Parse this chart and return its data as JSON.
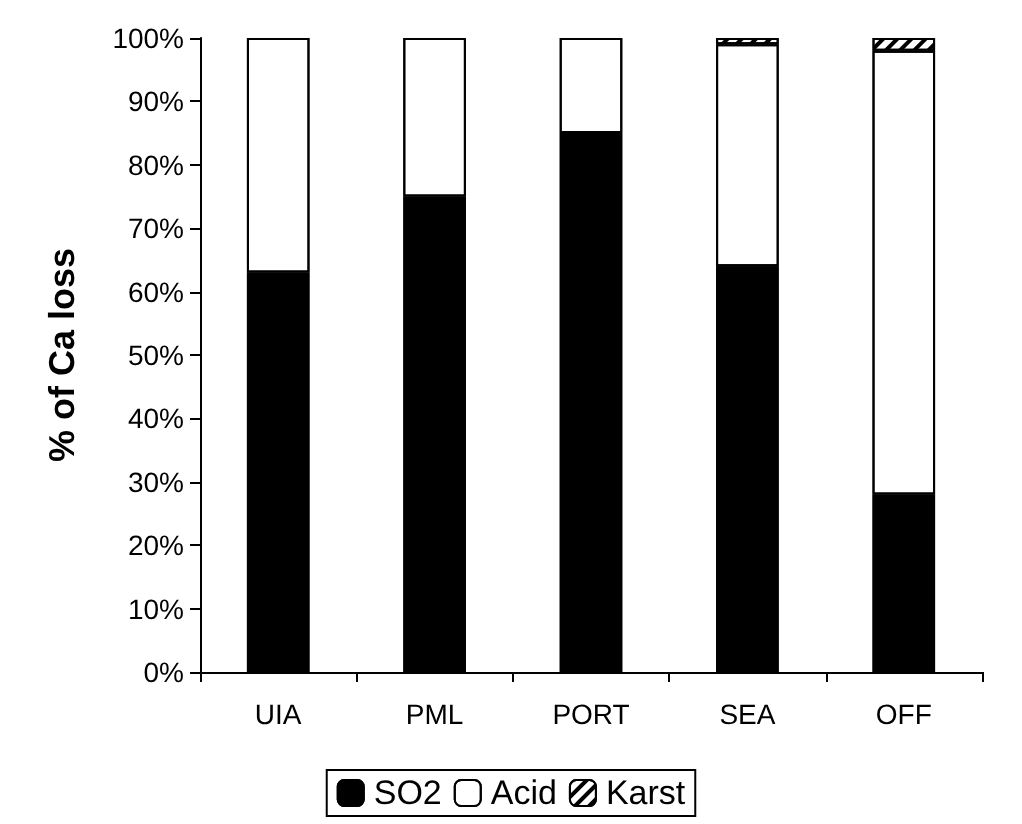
{
  "chart_data": {
    "type": "bar",
    "stacked": true,
    "ylabel": "% of Ca loss",
    "categories": [
      "UIA",
      "PML",
      "PORT",
      "SEA",
      "OFF"
    ],
    "series": [
      {
        "name": "SO2",
        "color": "#000000",
        "values": [
          63,
          75,
          85,
          64,
          28
        ]
      },
      {
        "name": "Acid",
        "color": "#ffffff",
        "values": [
          37,
          25,
          15,
          35,
          70
        ]
      },
      {
        "name": "Karst",
        "color": "#ffffff",
        "values": [
          null,
          null,
          null,
          1,
          2
        ]
      }
    ],
    "ylim": [
      0,
      100
    ],
    "yticks": [
      {
        "value": 0,
        "label": "0%"
      },
      {
        "value": 10,
        "label": "10%"
      },
      {
        "value": 20,
        "label": "20%"
      },
      {
        "value": 30,
        "label": "30%"
      },
      {
        "value": 40,
        "label": "40%"
      },
      {
        "value": 50,
        "label": "50%"
      },
      {
        "value": 60,
        "label": "60%"
      },
      {
        "value": 70,
        "label": "70%"
      },
      {
        "value": 80,
        "label": "80%"
      },
      {
        "value": 90,
        "label": "90%"
      },
      {
        "value": 100,
        "label": "100%"
      }
    ],
    "grid": false,
    "legend": "bottom"
  }
}
